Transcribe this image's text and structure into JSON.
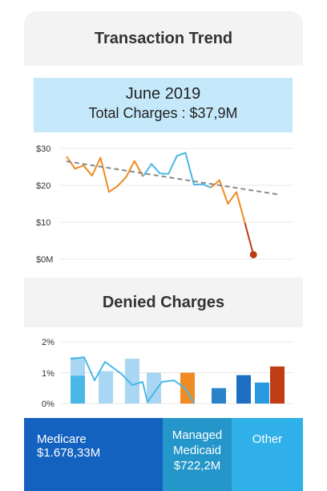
{
  "trend": {
    "title": "Transaction Trend",
    "period": "June 2019",
    "total_label": "Total Charges : $37,9M",
    "y_ticks": [
      "$30",
      "$20",
      "$10",
      "$0M"
    ]
  },
  "denied": {
    "title": "Denied Charges",
    "y_ticks": [
      "2%",
      "1%",
      "0%"
    ]
  },
  "chart_data": [
    {
      "type": "line",
      "title": "Transaction Trend",
      "ylim": [
        0,
        30
      ],
      "grid": true,
      "series": [
        {
          "color": "#ef8b22",
          "values": [
            27.8,
            24.5,
            25.4,
            22.6,
            27.5,
            18.2,
            19.8,
            22.2,
            26.6,
            22.4
          ]
        },
        {
          "color": "#49b8e6",
          "values": [
            22.4,
            25.8,
            23.2,
            23.1,
            28.0,
            28.8,
            20.2,
            20.3,
            19.4
          ]
        },
        {
          "color": "#ef8b22",
          "values": [
            19.4,
            21.4,
            15.0,
            18.2,
            9.8
          ]
        },
        {
          "color": "#b93b13",
          "values": [
            9.8,
            1.2
          ]
        },
        {
          "color": "#8a8a8a",
          "dashed": true,
          "values": [
            26.5,
            17.5
          ]
        }
      ]
    },
    {
      "type": "bar",
      "title": "Denied Charges",
      "ylim": [
        0,
        2
      ],
      "grid": true,
      "bars": [
        {
          "value": 1.5,
          "color": "#a9d6f2",
          "inner": 0.9,
          "inner_color": "#49b8e6"
        },
        {
          "value": 1.05,
          "color": "#a9d6f2"
        },
        {
          "value": 1.45,
          "color": "#a9d6f2"
        },
        {
          "value": 1.0,
          "color": "#a9d6f2"
        },
        {
          "value": 1.0,
          "color": "#ef8b22"
        },
        {
          "value": 0.5,
          "color": "#2a83c9"
        },
        {
          "value": 0.92,
          "color": "#1e6fc2"
        },
        {
          "value": 0.68,
          "color": "#2a9ae0"
        },
        {
          "value": 1.2,
          "color": "#c03c14"
        }
      ],
      "line": {
        "color": "#49b8e6",
        "values": [
          1.45,
          1.5,
          0.75,
          1.35,
          0.95,
          0.6,
          0.7,
          0.05,
          0.7,
          0.75,
          0.5,
          0.02
        ]
      }
    }
  ],
  "tiles": [
    {
      "name": "Medicare",
      "value": "$1.678,33M"
    },
    {
      "name1": "Managed",
      "name2": "Medicaid",
      "value": "$722,2M"
    },
    {
      "name": "Other"
    }
  ]
}
